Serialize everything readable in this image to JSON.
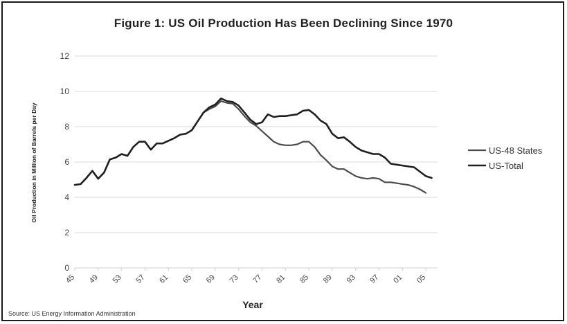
{
  "chart_data": {
    "type": "line",
    "title": "Figure 1: US Oil Production Has Been Declining Since 1970",
    "xlabel": "Year",
    "ylabel": "Oil Production in Million of Barrels per Day",
    "ylim": [
      0,
      12
    ],
    "yticks": [
      0,
      2,
      4,
      6,
      8,
      10,
      12
    ],
    "xlim": [
      1945,
      2007
    ],
    "xtick_labels": [
      "45",
      "49",
      "53",
      "57",
      "61",
      "65",
      "69",
      "73",
      "77",
      "81",
      "85",
      "89",
      "93",
      "97",
      "01",
      "05"
    ],
    "xtick_years": [
      1945,
      1949,
      1953,
      1957,
      1961,
      1965,
      1969,
      1973,
      1977,
      1981,
      1985,
      1989,
      1993,
      1997,
      2001,
      2005
    ],
    "grid": true,
    "legend_position": "right",
    "series": [
      {
        "name": "US-48 States",
        "color": "#4a4a4a",
        "points": [
          [
            1945,
            4.7
          ],
          [
            1946,
            4.75
          ],
          [
            1947,
            5.1
          ],
          [
            1948,
            5.5
          ],
          [
            1949,
            5.05
          ],
          [
            1950,
            5.4
          ],
          [
            1951,
            6.15
          ],
          [
            1952,
            6.25
          ],
          [
            1953,
            6.45
          ],
          [
            1954,
            6.35
          ],
          [
            1955,
            6.85
          ],
          [
            1956,
            7.15
          ],
          [
            1957,
            7.15
          ],
          [
            1958,
            6.7
          ],
          [
            1959,
            7.05
          ],
          [
            1960,
            7.05
          ],
          [
            1961,
            7.2
          ],
          [
            1962,
            7.35
          ],
          [
            1963,
            7.55
          ],
          [
            1964,
            7.6
          ],
          [
            1965,
            7.8
          ],
          [
            1966,
            8.3
          ],
          [
            1967,
            8.8
          ],
          [
            1968,
            9.0
          ],
          [
            1969,
            9.15
          ],
          [
            1970,
            9.45
          ],
          [
            1971,
            9.35
          ],
          [
            1972,
            9.3
          ],
          [
            1973,
            9.0
          ],
          [
            1974,
            8.6
          ],
          [
            1975,
            8.25
          ],
          [
            1976,
            8.05
          ],
          [
            1977,
            7.75
          ],
          [
            1978,
            7.45
          ],
          [
            1979,
            7.15
          ],
          [
            1980,
            7.0
          ],
          [
            1981,
            6.95
          ],
          [
            1982,
            6.95
          ],
          [
            1983,
            7.0
          ],
          [
            1984,
            7.15
          ],
          [
            1985,
            7.15
          ],
          [
            1986,
            6.85
          ],
          [
            1987,
            6.4
          ],
          [
            1988,
            6.1
          ],
          [
            1989,
            5.75
          ],
          [
            1990,
            5.6
          ],
          [
            1991,
            5.6
          ],
          [
            1992,
            5.4
          ],
          [
            1993,
            5.2
          ],
          [
            1994,
            5.1
          ],
          [
            1995,
            5.05
          ],
          [
            1996,
            5.1
          ],
          [
            1997,
            5.05
          ],
          [
            1998,
            4.85
          ],
          [
            1999,
            4.85
          ],
          [
            2000,
            4.8
          ],
          [
            2001,
            4.75
          ],
          [
            2002,
            4.7
          ],
          [
            2003,
            4.6
          ],
          [
            2004,
            4.45
          ],
          [
            2005,
            4.25
          ]
        ]
      },
      {
        "name": "US-Total",
        "color": "#1f1f1f",
        "points": [
          [
            1945,
            4.7
          ],
          [
            1946,
            4.75
          ],
          [
            1947,
            5.1
          ],
          [
            1948,
            5.5
          ],
          [
            1949,
            5.05
          ],
          [
            1950,
            5.4
          ],
          [
            1951,
            6.15
          ],
          [
            1952,
            6.25
          ],
          [
            1953,
            6.45
          ],
          [
            1954,
            6.35
          ],
          [
            1955,
            6.85
          ],
          [
            1956,
            7.15
          ],
          [
            1957,
            7.15
          ],
          [
            1958,
            6.7
          ],
          [
            1959,
            7.05
          ],
          [
            1960,
            7.05
          ],
          [
            1961,
            7.2
          ],
          [
            1962,
            7.35
          ],
          [
            1963,
            7.55
          ],
          [
            1964,
            7.6
          ],
          [
            1965,
            7.8
          ],
          [
            1966,
            8.3
          ],
          [
            1967,
            8.8
          ],
          [
            1968,
            9.1
          ],
          [
            1969,
            9.25
          ],
          [
            1970,
            9.6
          ],
          [
            1971,
            9.45
          ],
          [
            1972,
            9.4
          ],
          [
            1973,
            9.2
          ],
          [
            1974,
            8.8
          ],
          [
            1975,
            8.4
          ],
          [
            1976,
            8.15
          ],
          [
            1977,
            8.25
          ],
          [
            1978,
            8.7
          ],
          [
            1979,
            8.55
          ],
          [
            1980,
            8.6
          ],
          [
            1981,
            8.6
          ],
          [
            1982,
            8.65
          ],
          [
            1983,
            8.7
          ],
          [
            1984,
            8.9
          ],
          [
            1985,
            8.95
          ],
          [
            1986,
            8.7
          ],
          [
            1987,
            8.35
          ],
          [
            1988,
            8.15
          ],
          [
            1989,
            7.6
          ],
          [
            1990,
            7.35
          ],
          [
            1991,
            7.4
          ],
          [
            1992,
            7.15
          ],
          [
            1993,
            6.85
          ],
          [
            1994,
            6.65
          ],
          [
            1995,
            6.55
          ],
          [
            1996,
            6.45
          ],
          [
            1997,
            6.45
          ],
          [
            1998,
            6.25
          ],
          [
            1999,
            5.9
          ],
          [
            2000,
            5.85
          ],
          [
            2001,
            5.8
          ],
          [
            2002,
            5.75
          ],
          [
            2003,
            5.7
          ],
          [
            2004,
            5.45
          ],
          [
            2005,
            5.2
          ],
          [
            2006,
            5.1
          ]
        ]
      }
    ],
    "source": "Source: US Energy Information Administration"
  }
}
